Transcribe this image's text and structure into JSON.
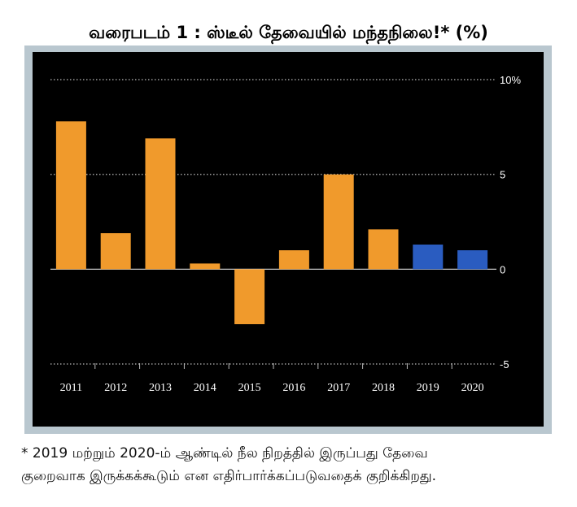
{
  "title": "வரைபடம் 1 : ஸ்டீல் தேவையில் மந்தநிலை!* (%)",
  "footnote_line1": "* 2019 மற்றும் 2020-ம் ஆண்டில் நீல நிறத்தில் இருப்பது தேவை",
  "footnote_line2": "குறைவாக இருக்கக்கூடும் என எதிர்பார்க்கப்படுவதைக் குறிக்கிறது.",
  "colors": {
    "actual": "#f09a2c",
    "forecast": "#2a5cc0",
    "background": "#000000",
    "frame": "#b9c7cf"
  },
  "chart_data": {
    "type": "bar",
    "categories": [
      "2011",
      "2012",
      "2013",
      "2014",
      "2015",
      "2016",
      "2017",
      "2018",
      "2019",
      "2020"
    ],
    "values": [
      7.8,
      1.9,
      6.9,
      0.3,
      -2.9,
      1.0,
      5.0,
      2.1,
      1.3,
      1.0
    ],
    "forecast": [
      false,
      false,
      false,
      false,
      false,
      false,
      false,
      false,
      true,
      true
    ],
    "ylim": [
      -5,
      10
    ],
    "yticks": [
      10,
      5,
      0,
      -5
    ],
    "ytick_labels": [
      "10%",
      "5",
      "0",
      "-5"
    ],
    "grid": true,
    "legend": "none"
  }
}
